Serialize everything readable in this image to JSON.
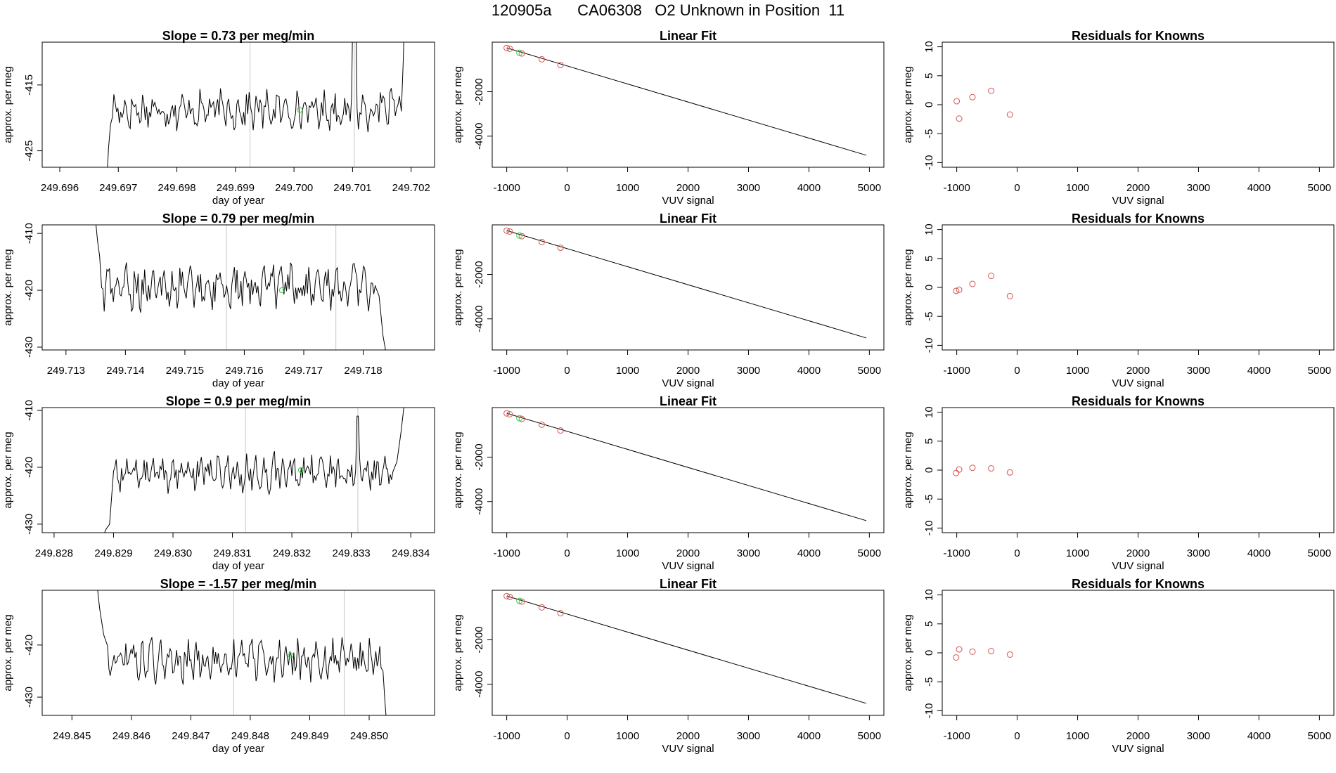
{
  "figure_title": "120905a      CA06308   O2 Unknown in Position  11",
  "colors": {
    "trace": "#000000",
    "known": "#d9534f",
    "unknown": "#2ecc40",
    "boundary": "#c8c8c8",
    "fit": "#000000"
  },
  "chart_data": [
    {
      "type": "line",
      "row": 1,
      "title": "Slope =  0.73  per meg/min",
      "xlabel": "day of year",
      "ylabel": "approx. per meg",
      "xlim": [
        249.6957,
        249.7024
      ],
      "ylim": [
        -427.5,
        -408.5
      ],
      "xticks": [
        249.696,
        249.697,
        249.698,
        249.699,
        249.7,
        249.701,
        249.702
      ],
      "xtick_labels": [
        "249.696",
        "249.697",
        "249.698",
        "249.699",
        "249.700",
        "249.701",
        "249.702"
      ],
      "yticks": [
        -425,
        -415
      ],
      "ytick_labels": [
        "-425",
        "-415"
      ],
      "x_start": 249.6968,
      "x_end": 249.7019,
      "x_stable_start": 249.6969,
      "x_stable_end": 249.7018,
      "mean": -418.8,
      "amplitude": 2.2,
      "lead_values": [
        -430,
        -424.5,
        -421
      ],
      "spike": {
        "x": 249.70103,
        "value": -402
      },
      "trail_values": [
        -419,
        -411,
        -400
      ],
      "boundaries": [
        249.69925,
        249.70103
      ],
      "unknown_point": {
        "x": 249.7001,
        "value": -418.8
      }
    },
    {
      "type": "scatter",
      "row": 1,
      "title": "Linear Fit",
      "xlabel": "VUV signal",
      "ylabel": "approx. per meg",
      "xlim": [
        -1240,
        5240
      ],
      "ylim": [
        -5400,
        230
      ],
      "xticks": [
        -1000,
        0,
        1000,
        2000,
        3000,
        4000,
        5000
      ],
      "xtick_labels": [
        "-1000",
        "0",
        "1000",
        "2000",
        "3000",
        "4000",
        "5000"
      ],
      "yticks": [
        -4000,
        -2000
      ],
      "ytick_labels": [
        "-4000",
        "-2000"
      ],
      "fit_line": {
        "x": [
          -1000,
          4950
        ],
        "y": [
          -27,
          -4860
        ]
      },
      "knowns": {
        "x": [
          -1000,
          -950,
          -750,
          -420,
          -110
        ],
        "y": [
          -30,
          -70,
          -280,
          -540,
          -800
        ]
      },
      "unknown": {
        "x": -790,
        "y": -250
      }
    },
    {
      "type": "scatter",
      "row": 1,
      "title": "Residuals for Knowns",
      "xlabel": "VUV signal",
      "ylabel": "approx. per meg",
      "xlim": [
        -1240,
        5240
      ],
      "ylim": [
        -10.8,
        10.8
      ],
      "xticks": [
        -1000,
        0,
        1000,
        2000,
        3000,
        4000,
        5000
      ],
      "xtick_labels": [
        "-1000",
        "0",
        "1000",
        "2000",
        "3000",
        "4000",
        "5000"
      ],
      "yticks": [
        -10,
        -5,
        0,
        5,
        10
      ],
      "ytick_labels": [
        "-10",
        "-5",
        "0",
        "5",
        "10"
      ],
      "points": {
        "x": [
          -1000,
          -960,
          -740,
          -430,
          -120
        ],
        "y": [
          0.6,
          -2.4,
          1.3,
          2.4,
          -1.7
        ]
      }
    },
    {
      "type": "line",
      "row": 2,
      "title": "Slope =  0.79  per meg/min",
      "xlabel": "day of year",
      "ylabel": "approx. per meg",
      "xlim": [
        249.7126,
        249.7192
      ],
      "ylim": [
        -430.5,
        -408.5
      ],
      "xticks": [
        249.713,
        249.714,
        249.715,
        249.716,
        249.717,
        249.718
      ],
      "xtick_labels": [
        "249.713",
        "249.714",
        "249.715",
        "249.716",
        "249.717",
        "249.718"
      ],
      "yticks": [
        -430,
        -420,
        -410
      ],
      "ytick_labels": [
        "-430",
        "-420",
        "-410"
      ],
      "x_start": 249.7135,
      "x_end": 249.7184,
      "x_stable_start": 249.7136,
      "x_stable_end": 249.7182,
      "mean": -419.5,
      "amplitude": 3.0,
      "lead_values": [
        -408,
        -411.5,
        -414
      ],
      "spike": null,
      "trail_values": [
        -421,
        -428,
        -432
      ],
      "boundaries": [
        249.7157,
        249.71754
      ],
      "unknown_point": {
        "x": 249.71663,
        "value": -420.0
      }
    },
    {
      "type": "scatter",
      "row": 2,
      "title": "Linear Fit",
      "xlabel": "VUV signal",
      "ylabel": "approx. per meg",
      "xlim": [
        -1240,
        5240
      ],
      "ylim": [
        -5400,
        230
      ],
      "xticks": [
        -1000,
        0,
        1000,
        2000,
        3000,
        4000,
        5000
      ],
      "xtick_labels": [
        "-1000",
        "0",
        "1000",
        "2000",
        "3000",
        "4000",
        "5000"
      ],
      "yticks": [
        -4000,
        -2000
      ],
      "ytick_labels": [
        "-4000",
        "-2000"
      ],
      "fit_line": {
        "x": [
          -1000,
          4950
        ],
        "y": [
          -27,
          -4860
        ]
      },
      "knowns": {
        "x": [
          -1000,
          -950,
          -750,
          -420,
          -110
        ],
        "y": [
          -30,
          -70,
          -280,
          -540,
          -800
        ]
      },
      "unknown": {
        "x": -790,
        "y": -250
      }
    },
    {
      "type": "scatter",
      "row": 2,
      "title": "Residuals for Knowns",
      "xlabel": "VUV signal",
      "ylabel": "approx. per meg",
      "xlim": [
        -1240,
        5240
      ],
      "ylim": [
        -10.8,
        10.8
      ],
      "xticks": [
        -1000,
        0,
        1000,
        2000,
        3000,
        4000,
        5000
      ],
      "xtick_labels": [
        "-1000",
        "0",
        "1000",
        "2000",
        "3000",
        "4000",
        "5000"
      ],
      "yticks": [
        -10,
        -5,
        0,
        5,
        10
      ],
      "ytick_labels": [
        "-10",
        "-5",
        "0",
        "5",
        "10"
      ],
      "points": {
        "x": [
          -1010,
          -960,
          -740,
          -430,
          -120
        ],
        "y": [
          -0.6,
          -0.4,
          0.6,
          2.0,
          -1.5
        ]
      }
    },
    {
      "type": "line",
      "row": 3,
      "title": "Slope =  0.9  per meg/min",
      "xlabel": "day of year",
      "ylabel": "approx. per meg",
      "xlim": [
        249.8278,
        249.8344
      ],
      "ylim": [
        -431.5,
        -409.5
      ],
      "xticks": [
        249.828,
        249.829,
        249.83,
        249.831,
        249.832,
        249.833,
        249.834
      ],
      "xtick_labels": [
        "249.828",
        "249.829",
        "249.830",
        "249.831",
        "249.832",
        "249.833",
        "249.834"
      ],
      "yticks": [
        -430,
        -420,
        -410
      ],
      "ytick_labels": [
        "-430",
        "-420",
        "-410"
      ],
      "x_start": 249.8288,
      "x_end": 249.8339,
      "x_stable_start": 249.829,
      "x_stable_end": 249.8337,
      "mean": -421.0,
      "amplitude": 2.5,
      "lead_values": [
        -433,
        -431,
        -430
      ],
      "spike": {
        "x": 249.83311,
        "value": -411
      },
      "trail_values": [
        -419,
        -414,
        -408
      ],
      "boundaries": [
        249.83122,
        249.83311
      ],
      "unknown_point": {
        "x": 249.83215,
        "value": -420.5
      }
    },
    {
      "type": "scatter",
      "row": 3,
      "title": "Linear Fit",
      "xlabel": "VUV signal",
      "ylabel": "approx. per meg",
      "xlim": [
        -1240,
        5240
      ],
      "ylim": [
        -5400,
        230
      ],
      "xticks": [
        -1000,
        0,
        1000,
        2000,
        3000,
        4000,
        5000
      ],
      "xtick_labels": [
        "-1000",
        "0",
        "1000",
        "2000",
        "3000",
        "4000",
        "5000"
      ],
      "yticks": [
        -4000,
        -2000
      ],
      "ytick_labels": [
        "-4000",
        "-2000"
      ],
      "fit_line": {
        "x": [
          -1000,
          4950
        ],
        "y": [
          -27,
          -4860
        ]
      },
      "knowns": {
        "x": [
          -1000,
          -950,
          -750,
          -420,
          -110
        ],
        "y": [
          -30,
          -70,
          -280,
          -540,
          -800
        ]
      },
      "unknown": {
        "x": -790,
        "y": -250
      }
    },
    {
      "type": "scatter",
      "row": 3,
      "title": "Residuals for Knowns",
      "xlabel": "VUV signal",
      "ylabel": "approx. per meg",
      "xlim": [
        -1240,
        5240
      ],
      "ylim": [
        -10.8,
        10.8
      ],
      "xticks": [
        -1000,
        0,
        1000,
        2000,
        3000,
        4000,
        5000
      ],
      "xtick_labels": [
        "-1000",
        "0",
        "1000",
        "2000",
        "3000",
        "4000",
        "5000"
      ],
      "yticks": [
        -10,
        -5,
        0,
        5,
        10
      ],
      "ytick_labels": [
        "-10",
        "-5",
        "0",
        "5",
        "10"
      ],
      "points": {
        "x": [
          -1010,
          -960,
          -740,
          -430,
          -120
        ],
        "y": [
          -0.5,
          0.1,
          0.4,
          0.3,
          -0.4
        ]
      }
    },
    {
      "type": "line",
      "row": 4,
      "title": "Slope =  -1.57  per meg/min",
      "xlabel": "day of year",
      "ylabel": "approx. per meg",
      "xlim": [
        249.8445,
        249.8511
      ],
      "ylim": [
        -433.5,
        -409.5
      ],
      "xticks": [
        249.845,
        249.846,
        249.847,
        249.848,
        249.849,
        249.85
      ],
      "xtick_labels": [
        "249.845",
        "249.846",
        "249.847",
        "249.848",
        "249.849",
        "249.850"
      ],
      "yticks": [
        -430,
        -420
      ],
      "ytick_labels": [
        "-430",
        "-420"
      ],
      "x_start": 249.8454,
      "x_end": 249.8503,
      "x_stable_start": 249.8456,
      "x_stable_end": 249.8502,
      "mean": -423.0,
      "amplitude": 3.0,
      "lead_values": [
        -406,
        -413,
        -418
      ],
      "spike": null,
      "trail_values": [
        -425,
        -431,
        -436
      ],
      "boundaries": [
        249.84772,
        249.84958
      ],
      "unknown_point": {
        "x": 249.84868,
        "value": -422.0
      }
    },
    {
      "type": "scatter",
      "row": 4,
      "title": "Linear Fit",
      "xlabel": "VUV signal",
      "ylabel": "approx. per meg",
      "xlim": [
        -1240,
        5240
      ],
      "ylim": [
        -5400,
        230
      ],
      "xticks": [
        -1000,
        0,
        1000,
        2000,
        3000,
        4000,
        5000
      ],
      "xtick_labels": [
        "-1000",
        "0",
        "1000",
        "2000",
        "3000",
        "4000",
        "5000"
      ],
      "yticks": [
        -4000,
        -2000
      ],
      "ytick_labels": [
        "-4000",
        "-2000"
      ],
      "fit_line": {
        "x": [
          -1000,
          4950
        ],
        "y": [
          -27,
          -4860
        ]
      },
      "knowns": {
        "x": [
          -1000,
          -950,
          -750,
          -420,
          -110
        ],
        "y": [
          -30,
          -70,
          -280,
          -540,
          -800
        ]
      },
      "unknown": {
        "x": -790,
        "y": -250
      }
    },
    {
      "type": "scatter",
      "row": 4,
      "title": "Residuals for Knowns",
      "xlabel": "VUV signal",
      "ylabel": "approx. per meg",
      "xlim": [
        -1240,
        5240
      ],
      "ylim": [
        -10.8,
        10.8
      ],
      "xticks": [
        -1000,
        0,
        1000,
        2000,
        3000,
        4000,
        5000
      ],
      "xtick_labels": [
        "-1000",
        "0",
        "1000",
        "2000",
        "3000",
        "4000",
        "5000"
      ],
      "yticks": [
        -10,
        -5,
        0,
        5,
        10
      ],
      "ytick_labels": [
        "-10",
        "-5",
        "0",
        "5",
        "10"
      ],
      "points": {
        "x": [
          -1010,
          -960,
          -740,
          -430,
          -120
        ],
        "y": [
          -0.8,
          0.6,
          0.2,
          0.3,
          -0.3
        ]
      }
    }
  ]
}
